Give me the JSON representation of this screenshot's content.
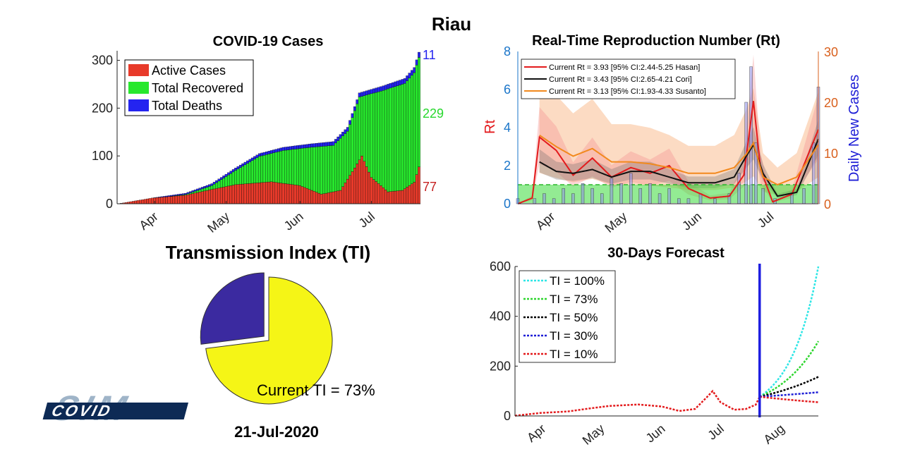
{
  "page": {
    "title": "Riau",
    "date": "21-Jul-2020",
    "logo_text": "COVID SIM",
    "tick_months": [
      "Apr",
      "May",
      "Jun",
      "Jul"
    ],
    "forecast_months": [
      "Apr",
      "May",
      "Jun",
      "Jul",
      "Aug"
    ]
  },
  "chart_data": [
    {
      "type": "bar",
      "title": "COVID-19 Cases",
      "stacked": true,
      "ylim": [
        0,
        320
      ],
      "yticks": [
        0,
        100,
        200,
        300
      ],
      "legend": [
        "Active Cases",
        "Total Recovered",
        "Total Deaths"
      ],
      "legend_position": "top-left",
      "colors": {
        "active": "#e83a2a",
        "recovered": "#27e82d",
        "deaths": "#2424f0"
      },
      "end_labels": {
        "deaths": "11",
        "recovered": "229",
        "active": "77"
      },
      "x_start": "2020-03-18",
      "x_end": "2020-07-21",
      "cumulative_keypoints": [
        [
          "2020-03-18",
          1
        ],
        [
          "2020-03-31",
          12
        ],
        [
          "2020-04-14",
          22
        ],
        [
          "2020-04-25",
          42
        ],
        [
          "2020-05-05",
          75
        ],
        [
          "2020-05-15",
          105
        ],
        [
          "2020-05-25",
          118
        ],
        [
          "2020-06-05",
          125
        ],
        [
          "2020-06-15",
          130
        ],
        [
          "2020-06-21",
          160
        ],
        [
          "2020-06-26",
          232
        ],
        [
          "2020-07-05",
          245
        ],
        [
          "2020-07-15",
          262
        ],
        [
          "2020-07-19",
          285
        ],
        [
          "2020-07-21",
          317
        ]
      ],
      "active_keypoints": [
        [
          "2020-03-18",
          1
        ],
        [
          "2020-03-31",
          12
        ],
        [
          "2020-04-14",
          18
        ],
        [
          "2020-04-25",
          30
        ],
        [
          "2020-05-05",
          40
        ],
        [
          "2020-05-20",
          46
        ],
        [
          "2020-06-01",
          38
        ],
        [
          "2020-06-10",
          20
        ],
        [
          "2020-06-18",
          28
        ],
        [
          "2020-06-24",
          75
        ],
        [
          "2020-06-27",
          100
        ],
        [
          "2020-07-01",
          55
        ],
        [
          "2020-07-08",
          25
        ],
        [
          "2020-07-14",
          28
        ],
        [
          "2020-07-19",
          45
        ],
        [
          "2020-07-21",
          77
        ]
      ],
      "deaths_keypoints": [
        [
          "2020-03-18",
          0
        ],
        [
          "2020-04-10",
          2
        ],
        [
          "2020-05-01",
          5
        ],
        [
          "2020-06-01",
          7
        ],
        [
          "2020-07-01",
          9
        ],
        [
          "2020-07-21",
          11
        ]
      ]
    },
    {
      "type": "line",
      "title": "Real-Time Reproduction Number (Rt)",
      "ylabel_left": "Rt",
      "ylabel_right": "Daily New Cases",
      "ylim_left": [
        0,
        8
      ],
      "yticks_left": [
        0,
        2,
        4,
        6,
        8
      ],
      "ylim_right": [
        0,
        30
      ],
      "yticks_right": [
        0,
        10,
        20,
        30
      ],
      "threshold": 1,
      "legend_position": "top-left",
      "x_start": "2020-03-18",
      "x_end": "2020-07-21",
      "series": [
        {
          "name": "Current Rt = 3.93 [95% CI:2.44-5.25 Hasan]",
          "color": "#e31a1c",
          "points": [
            [
              "2020-03-18",
              0
            ],
            [
              "2020-03-24",
              0.3
            ],
            [
              "2020-03-27",
              3.5
            ],
            [
              "2020-04-03",
              2.8
            ],
            [
              "2020-04-10",
              1.5
            ],
            [
              "2020-04-18",
              2.4
            ],
            [
              "2020-04-26",
              1.4
            ],
            [
              "2020-05-04",
              1.9
            ],
            [
              "2020-05-12",
              1.6
            ],
            [
              "2020-05-20",
              2.0
            ],
            [
              "2020-05-28",
              0.8
            ],
            [
              "2020-06-06",
              0.3
            ],
            [
              "2020-06-14",
              0.4
            ],
            [
              "2020-06-20",
              1.5
            ],
            [
              "2020-06-24",
              5.4
            ],
            [
              "2020-06-27",
              1.8
            ],
            [
              "2020-07-02",
              0.1
            ],
            [
              "2020-07-10",
              0.5
            ],
            [
              "2020-07-21",
              3.9
            ]
          ]
        },
        {
          "name": "Current Rt = 3.43 [95% CI:2.65-4.21 Cori]",
          "color": "#111111",
          "points": [
            [
              "2020-03-27",
              2.2
            ],
            [
              "2020-04-03",
              1.7
            ],
            [
              "2020-04-10",
              1.6
            ],
            [
              "2020-04-18",
              1.8
            ],
            [
              "2020-04-26",
              1.4
            ],
            [
              "2020-05-04",
              1.7
            ],
            [
              "2020-05-12",
              1.7
            ],
            [
              "2020-05-20",
              1.4
            ],
            [
              "2020-05-28",
              1.1
            ],
            [
              "2020-06-08",
              1.1
            ],
            [
              "2020-06-16",
              1.4
            ],
            [
              "2020-06-21",
              2.5
            ],
            [
              "2020-06-24",
              3.1
            ],
            [
              "2020-06-28",
              1.6
            ],
            [
              "2020-07-04",
              0.4
            ],
            [
              "2020-07-12",
              0.6
            ],
            [
              "2020-07-21",
              3.4
            ]
          ]
        },
        {
          "name": "Current Rt = 3.13 [95% CI:1.93-4.33 Susanto]",
          "color": "#f2891d",
          "points": [
            [
              "2020-03-27",
              3.6
            ],
            [
              "2020-04-03",
              3.0
            ],
            [
              "2020-04-10",
              2.5
            ],
            [
              "2020-04-18",
              2.9
            ],
            [
              "2020-04-26",
              2.2
            ],
            [
              "2020-05-04",
              2.2
            ],
            [
              "2020-05-12",
              2.1
            ],
            [
              "2020-05-20",
              1.9
            ],
            [
              "2020-05-28",
              1.6
            ],
            [
              "2020-06-08",
              1.6
            ],
            [
              "2020-06-16",
              1.9
            ],
            [
              "2020-06-21",
              2.6
            ],
            [
              "2020-06-24",
              3.2
            ],
            [
              "2020-06-28",
              1.4
            ],
            [
              "2020-07-04",
              1.0
            ],
            [
              "2020-07-12",
              1.4
            ],
            [
              "2020-07-21",
              3.1
            ]
          ]
        }
      ],
      "daily_new_cases": [
        [
          "2020-03-18",
          1
        ],
        [
          "2020-03-20",
          0
        ],
        [
          "2020-03-25",
          1
        ],
        [
          "2020-03-29",
          2
        ],
        [
          "2020-04-02",
          1
        ],
        [
          "2020-04-06",
          3
        ],
        [
          "2020-04-10",
          2
        ],
        [
          "2020-04-14",
          4
        ],
        [
          "2020-04-18",
          3
        ],
        [
          "2020-04-22",
          2
        ],
        [
          "2020-04-26",
          5
        ],
        [
          "2020-04-30",
          4
        ],
        [
          "2020-05-04",
          6
        ],
        [
          "2020-05-08",
          3
        ],
        [
          "2020-05-12",
          4
        ],
        [
          "2020-05-16",
          2
        ],
        [
          "2020-05-20",
          3
        ],
        [
          "2020-05-24",
          1
        ],
        [
          "2020-05-28",
          1
        ],
        [
          "2020-06-02",
          2
        ],
        [
          "2020-06-08",
          1
        ],
        [
          "2020-06-14",
          2
        ],
        [
          "2020-06-18",
          6
        ],
        [
          "2020-06-21",
          20
        ],
        [
          "2020-06-23",
          27
        ],
        [
          "2020-06-25",
          12
        ],
        [
          "2020-06-28",
          3
        ],
        [
          "2020-07-03",
          1
        ],
        [
          "2020-07-10",
          2
        ],
        [
          "2020-07-15",
          3
        ],
        [
          "2020-07-19",
          12
        ],
        [
          "2020-07-21",
          23
        ]
      ]
    },
    {
      "type": "pie",
      "title": "Transmission Index (TI)",
      "annotation": "Current TI = 73%",
      "slices": [
        {
          "label": "TI",
          "value": 73,
          "color": "#f5f516"
        },
        {
          "label": "Remaining",
          "value": 27,
          "color": "#3b2aa0",
          "exploded": true
        }
      ]
    },
    {
      "type": "line",
      "title": "30-Days Forecast",
      "ylim": [
        0,
        600
      ],
      "yticks": [
        0,
        200,
        400,
        600
      ],
      "legend_position": "top-left",
      "x_start": "2020-03-18",
      "x_end": "2020-08-20",
      "current_date": "2020-07-21",
      "history_color": "#e31a1c",
      "history": [
        [
          "2020-03-18",
          1
        ],
        [
          "2020-03-31",
          12
        ],
        [
          "2020-04-14",
          18
        ],
        [
          "2020-04-25",
          30
        ],
        [
          "2020-05-05",
          40
        ],
        [
          "2020-05-20",
          46
        ],
        [
          "2020-06-01",
          38
        ],
        [
          "2020-06-10",
          20
        ],
        [
          "2020-06-18",
          28
        ],
        [
          "2020-06-24",
          75
        ],
        [
          "2020-06-27",
          100
        ],
        [
          "2020-07-01",
          55
        ],
        [
          "2020-07-08",
          25
        ],
        [
          "2020-07-14",
          28
        ],
        [
          "2020-07-19",
          45
        ],
        [
          "2020-07-21",
          77
        ]
      ],
      "series": [
        {
          "name": "TI = 100%",
          "color": "#2fe6e6",
          "end": 600
        },
        {
          "name": "TI = 73%",
          "color": "#2fd62f",
          "end": 300
        },
        {
          "name": "TI = 50%",
          "color": "#000000",
          "end": 157
        },
        {
          "name": "TI = 30%",
          "color": "#1d1dd6",
          "end": 95
        },
        {
          "name": "TI = 10%",
          "color": "#e31a1c",
          "end": 55
        }
      ]
    }
  ]
}
